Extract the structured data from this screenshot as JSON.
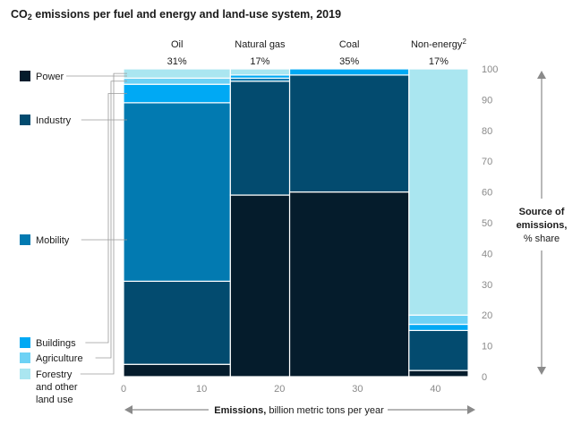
{
  "title": {
    "prefix": "CO",
    "sub": "2",
    "rest": " emissions per fuel and energy and land-use system, 2019"
  },
  "chart_data": {
    "type": "marimekko",
    "xlabel_bold": "Emissions,",
    "xlabel_rest": " billion metric tons per year",
    "ylabel_lines": [
      "Source of",
      "emissions,",
      "% share"
    ],
    "xlim": [
      0,
      45
    ],
    "ylim": [
      0,
      100
    ],
    "x_ticks": [
      0,
      10,
      20,
      30,
      40
    ],
    "y_ticks": [
      0,
      10,
      20,
      30,
      40,
      50,
      60,
      70,
      80,
      90,
      100
    ],
    "sectors": [
      {
        "name": "Power",
        "color": "#051c2c"
      },
      {
        "name": "Industry",
        "color": "#034b6f"
      },
      {
        "name": "Mobility",
        "color": "#027ab1"
      },
      {
        "name": "Buildings",
        "color": "#00a9f4"
      },
      {
        "name": "Agriculture",
        "color": "#6ed2f5"
      },
      {
        "name": "Forestry and other land use",
        "lines": [
          "Forestry",
          "and other",
          "land use"
        ],
        "color": "#aae6f0"
      }
    ],
    "fuels": [
      {
        "name": "Oil",
        "share_label": "31%",
        "width": 13.7,
        "values": [
          4,
          27,
          58,
          6,
          2,
          3
        ]
      },
      {
        "name": "Natural gas",
        "share_label": "17%",
        "width": 7.6,
        "values": [
          59,
          37,
          1,
          1,
          0,
          2
        ]
      },
      {
        "name": "Coal",
        "share_label": "35%",
        "width": 15.3,
        "values": [
          60,
          38,
          0,
          2,
          0,
          0
        ]
      },
      {
        "name": "Non-energy",
        "sup": "2",
        "share_label": "17%",
        "width": 7.6,
        "values": [
          2,
          13,
          0,
          2,
          3,
          80
        ]
      }
    ]
  }
}
